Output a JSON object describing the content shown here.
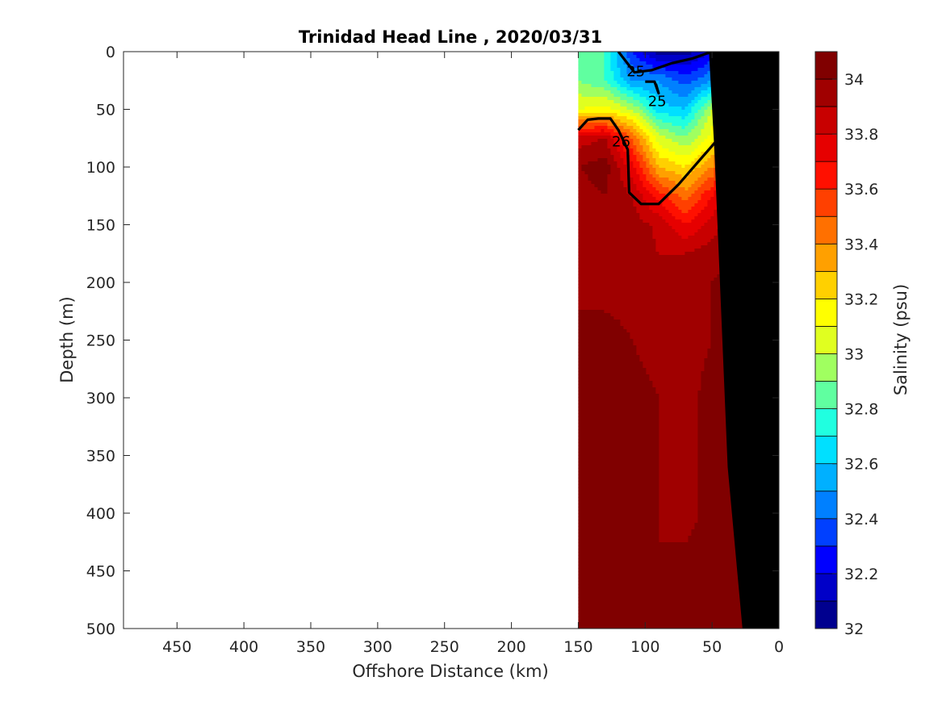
{
  "chart_data": {
    "type": "heatmap",
    "title": "Trinidad Head Line , 2020/03/31",
    "xlabel": "Offshore Distance (km)",
    "ylabel": "Depth (m)",
    "colorbar_label": "Salinity (psu)",
    "xlim": [
      490,
      0
    ],
    "ylim": [
      0,
      500
    ],
    "x_reversed": true,
    "y_reversed": true,
    "x_ticks": [
      450,
      400,
      350,
      300,
      250,
      200,
      150,
      100,
      50,
      0
    ],
    "y_ticks": [
      0,
      50,
      100,
      150,
      200,
      250,
      300,
      350,
      400,
      450,
      500
    ],
    "colorbar": {
      "min": 32.0,
      "max": 34.1,
      "step": 0.1,
      "tick_values": [
        32,
        32.2,
        32.4,
        32.6,
        32.8,
        33,
        33.2,
        33.4,
        33.6,
        33.8,
        34
      ],
      "tick_labels": [
        "32",
        "32.2",
        "32.4",
        "32.6",
        "32.8",
        "33",
        "33.2",
        "33.4",
        "33.6",
        "33.8",
        "34"
      ],
      "colors": [
        "#00008f",
        "#0000c8",
        "#0000ff",
        "#0040ff",
        "#0080ff",
        "#00b0ff",
        "#00e0ff",
        "#20ffe0",
        "#60ffa0",
        "#a0ff60",
        "#e0ff20",
        "#ffff00",
        "#ffd000",
        "#ffa000",
        "#ff7000",
        "#ff4000",
        "#ff1000",
        "#e60000",
        "#c80000",
        "#a00000",
        "#800000"
      ]
    },
    "data_extent": {
      "x": [
        150,
        20
      ],
      "y": [
        0,
        500
      ]
    },
    "grid_x": [
      150,
      130,
      110,
      90,
      70,
      50,
      35,
      20
    ],
    "grid_y": [
      0,
      25,
      50,
      75,
      100,
      125,
      150,
      175,
      200,
      250,
      300,
      350,
      400,
      450,
      500
    ],
    "salinity": [
      [
        32.85,
        32.8,
        32.3,
        32.05,
        32.05,
        32.2,
        32.5,
        32.8
      ],
      [
        32.9,
        32.8,
        32.5,
        32.5,
        32.35,
        32.5,
        32.8,
        33.1
      ],
      [
        33.1,
        33.15,
        33.0,
        32.65,
        32.6,
        33.0,
        33.45,
        33.6
      ],
      [
        33.85,
        33.9,
        33.5,
        33.05,
        32.9,
        33.15,
        33.75,
        33.85
      ],
      [
        34.0,
        34.05,
        33.75,
        33.3,
        33.2,
        33.4,
        33.9,
        33.95
      ],
      [
        33.95,
        34.0,
        33.9,
        33.65,
        33.45,
        33.7,
        33.9,
        34.0
      ],
      [
        33.9,
        33.95,
        33.95,
        33.88,
        33.7,
        33.85,
        33.95,
        34.0
      ],
      [
        33.9,
        33.95,
        33.95,
        33.9,
        33.9,
        33.95,
        34.0,
        34.05
      ],
      [
        33.95,
        33.95,
        33.95,
        33.95,
        33.95,
        34.0,
        34.05,
        34.05
      ],
      [
        34.05,
        34.05,
        34.0,
        33.95,
        33.95,
        34.0,
        34.05,
        34.05
      ],
      [
        34.05,
        34.05,
        34.05,
        34.0,
        33.95,
        34.05,
        34.05,
        34.05
      ],
      [
        34.1,
        34.05,
        34.05,
        34.0,
        33.95,
        34.05,
        34.05,
        34.05
      ],
      [
        34.1,
        34.1,
        34.05,
        34.0,
        33.95,
        34.05,
        34.05,
        34.1
      ],
      [
        34.1,
        34.1,
        34.05,
        34.0,
        34.05,
        34.05,
        34.1,
        34.1
      ],
      [
        34.1,
        34.1,
        34.05,
        34.05,
        34.05,
        34.05,
        34.1,
        34.1
      ]
    ],
    "land_polygon": {
      "x": [
        0,
        0,
        27,
        38,
        48,
        52,
        14,
        0
      ],
      "y": [
        0,
        500,
        500,
        360,
        85,
        0,
        0,
        0
      ]
    },
    "density_contours": [
      {
        "label": "25",
        "x": [
          120,
          108,
          95,
          80,
          65,
          50
        ],
        "y": [
          0,
          18,
          16,
          10,
          6,
          0
        ]
      },
      {
        "label": "25",
        "x": [
          100,
          93,
          90,
          92
        ],
        "y": [
          26,
          26,
          36,
          28
        ]
      },
      {
        "label": "26",
        "x": [
          150,
          143,
          135,
          126,
          120,
          113,
          112,
          103,
          90,
          75,
          60,
          45,
          30,
          20
        ],
        "y": [
          68,
          59,
          58,
          58,
          68,
          85,
          122,
          132,
          132,
          115,
          95,
          75,
          78,
          80
        ]
      }
    ],
    "contour_labels": [
      {
        "text": "25",
        "x": 107,
        "y": 17
      },
      {
        "text": "25",
        "x": 91,
        "y": 43
      },
      {
        "text": "26",
        "x": 118,
        "y": 78
      }
    ]
  }
}
